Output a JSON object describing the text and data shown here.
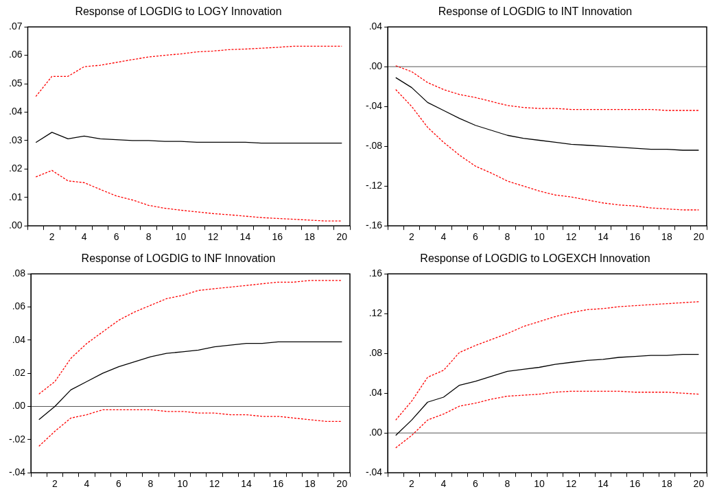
{
  "chart_data": [
    {
      "type": "line",
      "title": "Response of LOGDIG to LOGY Innovation",
      "categories": [
        null,
        "2",
        null,
        "4",
        null,
        "6",
        null,
        "8",
        null,
        "10",
        null,
        "12",
        null,
        "14",
        null,
        "16",
        null,
        "18",
        null,
        "20"
      ],
      "ylim": [
        0,
        0.07
      ],
      "yticks": [
        {
          "value": 0,
          "label": ".00"
        },
        {
          "value": 0.01,
          "label": ".01"
        },
        {
          "value": 0.02,
          "label": ".02"
        },
        {
          "value": 0.03,
          "label": ".03"
        },
        {
          "value": 0.04,
          "label": ".04"
        },
        {
          "value": 0.05,
          "label": ".05"
        },
        {
          "value": 0.06,
          "label": ".06"
        },
        {
          "value": 0.07,
          "label": ".07"
        }
      ],
      "legend": false,
      "series": [
        {
          "color": "#000000",
          "line_style": "solid",
          "values": [
            0.0293,
            0.0329,
            0.0306,
            0.0316,
            0.0306,
            0.0303,
            0.03,
            0.03,
            0.0297,
            0.0297,
            0.0294,
            0.0294,
            0.0294,
            0.0294,
            0.0291,
            0.0291,
            0.0291,
            0.0291,
            0.0291,
            0.0291
          ]
        },
        {
          "color": "#ff0000",
          "line_style": "dashed",
          "values": [
            0.0455,
            0.0526,
            0.0526,
            0.056,
            0.0565,
            0.0575,
            0.0585,
            0.0594,
            0.06,
            0.0605,
            0.0612,
            0.0615,
            0.062,
            0.0622,
            0.0625,
            0.0628,
            0.0632,
            0.0632,
            0.0632,
            0.0632
          ]
        },
        {
          "color": "#ff0000",
          "line_style": "dashed",
          "values": [
            0.0172,
            0.0195,
            0.0158,
            0.0152,
            0.0128,
            0.0105,
            0.0091,
            0.0072,
            0.0062,
            0.0055,
            0.0049,
            0.0043,
            0.0039,
            0.0034,
            0.0029,
            0.0026,
            0.0023,
            0.002,
            0.0017,
            0.0017
          ]
        }
      ]
    },
    {
      "type": "line",
      "title": "Response of LOGDIG to INT Innovation",
      "categories": [
        null,
        "2",
        null,
        "4",
        null,
        "6",
        null,
        "8",
        null,
        "10",
        null,
        "12",
        null,
        "14",
        null,
        "16",
        null,
        "18",
        null,
        "20"
      ],
      "ylim": [
        -0.16,
        0.04
      ],
      "yticks": [
        {
          "value": -0.16,
          "label": "-.16"
        },
        {
          "value": -0.12,
          "label": "-.12"
        },
        {
          "value": -0.08,
          "label": "-.08"
        },
        {
          "value": -0.04,
          "label": "-.04"
        },
        {
          "value": 0,
          "label": ".00"
        },
        {
          "value": 0.04,
          "label": ".04"
        }
      ],
      "legend": false,
      "ref_lines": [
        {
          "axis": "y",
          "value": 0,
          "color": "#555555"
        }
      ],
      "series": [
        {
          "color": "#000000",
          "line_style": "solid",
          "values": [
            -0.011,
            -0.021,
            -0.036,
            -0.044,
            -0.052,
            -0.059,
            -0.064,
            -0.069,
            -0.072,
            -0.074,
            -0.076,
            -0.078,
            -0.079,
            -0.08,
            -0.081,
            -0.082,
            -0.083,
            -0.083,
            -0.084,
            -0.084
          ]
        },
        {
          "color": "#ff0000",
          "line_style": "dashed",
          "values": [
            0.001,
            -0.005,
            -0.016,
            -0.023,
            -0.028,
            -0.031,
            -0.035,
            -0.039,
            -0.041,
            -0.042,
            -0.042,
            -0.043,
            -0.043,
            -0.043,
            -0.043,
            -0.043,
            -0.043,
            -0.044,
            -0.044,
            -0.044
          ]
        },
        {
          "color": "#ff0000",
          "line_style": "dashed",
          "values": [
            -0.023,
            -0.04,
            -0.061,
            -0.076,
            -0.089,
            -0.1,
            -0.107,
            -0.115,
            -0.12,
            -0.125,
            -0.129,
            -0.131,
            -0.134,
            -0.137,
            -0.139,
            -0.14,
            -0.142,
            -0.143,
            -0.144,
            -0.144
          ]
        }
      ]
    },
    {
      "type": "line",
      "title": "Response of LOGDIG to INF Innovation",
      "categories": [
        null,
        "2",
        null,
        "4",
        null,
        "6",
        null,
        "8",
        null,
        "10",
        null,
        "12",
        null,
        "14",
        null,
        "16",
        null,
        "18",
        null,
        "20"
      ],
      "ylim": [
        -0.04,
        0.08
      ],
      "yticks": [
        {
          "value": -0.04,
          "label": "-.04"
        },
        {
          "value": -0.02,
          "label": "-.02"
        },
        {
          "value": 0,
          "label": ".00"
        },
        {
          "value": 0.02,
          "label": ".02"
        },
        {
          "value": 0.04,
          "label": ".04"
        },
        {
          "value": 0.06,
          "label": ".06"
        },
        {
          "value": 0.08,
          "label": ".08"
        }
      ],
      "legend": false,
      "ref_lines": [
        {
          "axis": "y",
          "value": 0,
          "color": "#555555"
        }
      ],
      "series": [
        {
          "color": "#000000",
          "line_style": "solid",
          "values": [
            -0.008,
            0.0,
            0.01,
            0.015,
            0.02,
            0.024,
            0.027,
            0.03,
            0.032,
            0.033,
            0.034,
            0.036,
            0.037,
            0.038,
            0.038,
            0.039,
            0.039,
            0.039,
            0.039,
            0.039
          ]
        },
        {
          "color": "#ff0000",
          "line_style": "dashed",
          "values": [
            0.0075,
            0.015,
            0.029,
            0.038,
            0.045,
            0.052,
            0.057,
            0.061,
            0.065,
            0.067,
            0.07,
            0.071,
            0.072,
            0.073,
            0.074,
            0.075,
            0.075,
            0.076,
            0.076,
            0.076
          ]
        },
        {
          "color": "#ff0000",
          "line_style": "dashed",
          "values": [
            -0.024,
            -0.015,
            -0.007,
            -0.005,
            -0.002,
            -0.002,
            -0.002,
            -0.002,
            -0.003,
            -0.003,
            -0.004,
            -0.004,
            -0.005,
            -0.005,
            -0.006,
            -0.006,
            -0.007,
            -0.008,
            -0.009,
            -0.009
          ]
        }
      ]
    },
    {
      "type": "line",
      "title": "Response of LOGDIG to LOGEXCH Innovation",
      "categories": [
        null,
        "2",
        null,
        "4",
        null,
        "6",
        null,
        "8",
        null,
        "10",
        null,
        "12",
        null,
        "14",
        null,
        "16",
        null,
        "18",
        null,
        "20"
      ],
      "ylim": [
        -0.04,
        0.16
      ],
      "yticks": [
        {
          "value": -0.04,
          "label": "-.04"
        },
        {
          "value": 0,
          "label": ".00"
        },
        {
          "value": 0.04,
          "label": ".04"
        },
        {
          "value": 0.08,
          "label": ".08"
        },
        {
          "value": 0.12,
          "label": ".12"
        },
        {
          "value": 0.16,
          "label": ".16"
        }
      ],
      "legend": false,
      "ref_lines": [
        {
          "axis": "y",
          "value": 0,
          "color": "#555555"
        }
      ],
      "series": [
        {
          "color": "#000000",
          "line_style": "solid",
          "values": [
            -0.0025,
            0.013,
            0.031,
            0.036,
            0.048,
            0.052,
            0.057,
            0.062,
            0.064,
            0.066,
            0.069,
            0.071,
            0.073,
            0.074,
            0.076,
            0.077,
            0.078,
            0.078,
            0.079,
            0.079
          ]
        },
        {
          "color": "#ff0000",
          "line_style": "dashed",
          "values": [
            0.013,
            0.032,
            0.056,
            0.063,
            0.081,
            0.088,
            0.094,
            0.1,
            0.107,
            0.112,
            0.117,
            0.121,
            0.124,
            0.125,
            0.127,
            0.128,
            0.129,
            0.13,
            0.131,
            0.132
          ]
        },
        {
          "color": "#ff0000",
          "line_style": "dashed",
          "values": [
            -0.015,
            -0.0025,
            0.013,
            0.019,
            0.027,
            0.03,
            0.034,
            0.037,
            0.038,
            0.039,
            0.041,
            0.042,
            0.042,
            0.042,
            0.042,
            0.041,
            0.041,
            0.041,
            0.04,
            0.039
          ]
        }
      ]
    }
  ]
}
